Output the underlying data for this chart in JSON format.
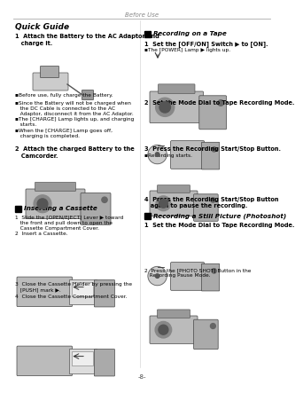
{
  "page_title": "Before Use",
  "page_number": "-8-",
  "section_title": "Quick Guide",
  "bg_color": "#ffffff",
  "text_color": "#000000",
  "divider_color": "#888888",
  "left_column": {
    "step1_title": "1  Attach the Battery to the AC Adaptor and\n   charge it.",
    "bullet1": "▪Before use, fully charge the Battery.",
    "bullet2": "▪Since the Battery will not be charged when\n   the DC Cable is connected to the AC\n   Adaptor, disconnect it from the AC Adaptor.",
    "bullet3": "▪The [CHARGE] Lamp lights up, and charging\n   starts.",
    "bullet4": "▪When the [CHARGE] Lamp goes off,\n   charging is completed.",
    "step2_title": "2  Attach the charged Battery to the\n   Camcorder.",
    "cassette_title": "Inserting a Cassette",
    "cassette_step1": "1  Slide the [OPEN/EJECT] Lever ▶ toward\n   the front and pull down to open the\n   Cassette Compartment Cover.",
    "cassette_step2": "2  Insert a Cassette.",
    "cassette_step3": "3  Close the Cassette Holder by pressing the\n   [PUSH] mark ▶.",
    "cassette_step4": "4  Close the Cassette Compartment Cover."
  },
  "right_column": {
    "tape_title": "Recording on a Tape",
    "tape_step1": "1  Set the [OFF/ON] Switch ▶ to [ON].",
    "tape_step1b": "▪The [POWER] Lamp ▶ lights up.",
    "tape_step2": "2  Set the Mode Dial to Tape Recording Mode.",
    "tape_step3": "3  Press the Recording Start/Stop Button.",
    "tape_step3b": "▪Recording starts.",
    "tape_step4": "4  Press the Recording Start/Stop Button\n   again to pause the recording.",
    "still_title": "Recording a Still Picture (Photoshot)",
    "still_step1": "1  Set the Mode Dial to Tape Recording Mode.",
    "still_step2": "2  Press the [PHOTO SHOT] Button in the\n   Recording Pause Mode."
  },
  "font_sizes": {
    "header": 5.0,
    "section": 6.5,
    "step_bold": 4.8,
    "body": 4.2,
    "subhead": 5.2,
    "page_num": 5.0
  }
}
